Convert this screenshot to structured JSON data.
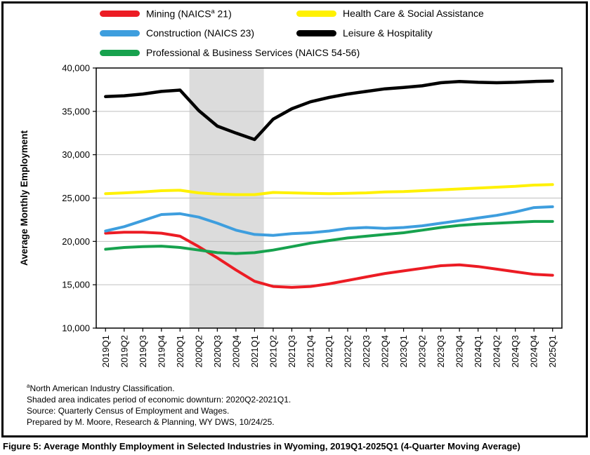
{
  "figure": {
    "caption": "Figure 5: Average Monthly Employment in Selected Industries in Wyoming, 2019Q1-2025Q1 (4-Quarter Moving Average)"
  },
  "footnotes": {
    "line1_sup": "a",
    "line1": "North American Industry Classification.",
    "line2": "Shaded area indicates period of economic downturn: 2020Q2-2021Q1.",
    "line3": "Source: Quarterly Census of Employment and Wages.",
    "line4": "Prepared by M. Moore, Research & Planning, WY DWS, 10/24/25."
  },
  "chart_data": {
    "type": "line",
    "title": "",
    "xlabel": "",
    "ylabel": "Average Monthly Employment",
    "ylim": [
      10000,
      40000
    ],
    "yticks": [
      10000,
      15000,
      20000,
      25000,
      30000,
      35000,
      40000
    ],
    "grid": "horizontal",
    "legend_position": "top",
    "shaded_region": {
      "from": "2020Q2",
      "to": "2021Q1",
      "color": "#DCDCDC"
    },
    "categories": [
      "2019Q1",
      "2019Q2",
      "2019Q3",
      "2019Q4",
      "2020Q1",
      "2020Q2",
      "2020Q3",
      "2020Q4",
      "2021Q1",
      "2021Q2",
      "2021Q3",
      "2021Q4",
      "2022Q1",
      "2022Q2",
      "2022Q3",
      "2022Q4",
      "2023Q1",
      "2023Q2",
      "2023Q3",
      "2023Q4",
      "2024Q1",
      "2024Q2",
      "2024Q3",
      "2024Q4",
      "2025Q1"
    ],
    "series": [
      {
        "key": "mining",
        "label_pre": "Mining (NAICS",
        "label_sup": "a",
        "label_post": " 21)",
        "color": "#EC1C24",
        "values": [
          20950,
          21050,
          21050,
          20950,
          20600,
          19400,
          18100,
          16700,
          15400,
          14800,
          14700,
          14800,
          15100,
          15500,
          15900,
          16300,
          16600,
          16900,
          17200,
          17300,
          17100,
          16800,
          16500,
          16200,
          16100
        ]
      },
      {
        "key": "construction",
        "label_pre": "Construction (NAICS 23)",
        "label_sup": "",
        "label_post": "",
        "color": "#3E9EDE",
        "values": [
          21200,
          21700,
          22400,
          23100,
          23200,
          22800,
          22100,
          21300,
          20800,
          20700,
          20900,
          21000,
          21200,
          21500,
          21600,
          21500,
          21600,
          21800,
          22100,
          22400,
          22700,
          23000,
          23400,
          23900,
          24000
        ]
      },
      {
        "key": "professional-business-services",
        "label_pre": "Professional & Business Services (NAICS 54-56)",
        "label_sup": "",
        "label_post": "",
        "color": "#17A24E",
        "values": [
          19100,
          19300,
          19400,
          19450,
          19300,
          19000,
          18700,
          18600,
          18700,
          19000,
          19400,
          19800,
          20100,
          20400,
          20600,
          20800,
          21000,
          21300,
          21600,
          21850,
          22000,
          22100,
          22200,
          22300,
          22300
        ]
      },
      {
        "key": "health-care-social-assistance",
        "label_pre": "Health Care & Social Assistance",
        "label_sup": "",
        "label_post": "",
        "color": "#FFF101",
        "values": [
          25500,
          25600,
          25700,
          25850,
          25900,
          25600,
          25450,
          25400,
          25400,
          25650,
          25600,
          25550,
          25500,
          25550,
          25600,
          25700,
          25750,
          25850,
          25950,
          26050,
          26150,
          26250,
          26350,
          26500,
          26550
        ]
      },
      {
        "key": "leisure-hospitality",
        "label_pre": "Leisure & Hospitality",
        "label_sup": "",
        "label_post": "",
        "color": "#000000",
        "values": [
          36700,
          36800,
          37000,
          37300,
          37450,
          35100,
          33300,
          32500,
          31750,
          34100,
          35300,
          36100,
          36600,
          37000,
          37300,
          37600,
          37750,
          37950,
          38300,
          38450,
          38350,
          38300,
          38350,
          38450,
          38500
        ]
      }
    ]
  }
}
